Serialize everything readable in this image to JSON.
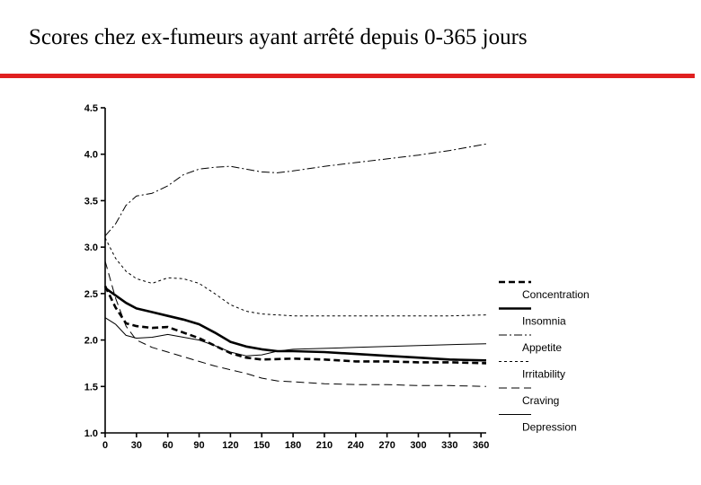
{
  "slide": {
    "title": "Scores chez ex-fumeurs ayant arrêté depuis 0-365 jours",
    "accent_color": "#e02020"
  },
  "chart_data": {
    "type": "line",
    "title": "",
    "xlabel": "",
    "ylabel": "",
    "xlim": [
      0,
      365
    ],
    "ylim": [
      1.0,
      4.5
    ],
    "xticks": [
      0,
      30,
      60,
      90,
      120,
      150,
      180,
      210,
      240,
      270,
      300,
      330,
      360
    ],
    "yticks": [
      1.0,
      1.5,
      2.0,
      2.5,
      3.0,
      3.5,
      4.0,
      4.5
    ],
    "ytick_labels": [
      "1.0",
      "1.5",
      "2.0",
      "2.5",
      "3.0",
      "3.5",
      "4.0",
      "4.5"
    ],
    "grid": false,
    "legend_position": "right",
    "series": [
      {
        "name": "Concentration",
        "style": "bold-dashed",
        "x": [
          0,
          10,
          20,
          30,
          45,
          60,
          75,
          90,
          105,
          120,
          135,
          150,
          180,
          210,
          240,
          270,
          300,
          330,
          365
        ],
        "y": [
          2.58,
          2.35,
          2.18,
          2.15,
          2.13,
          2.14,
          2.08,
          2.02,
          1.94,
          1.86,
          1.81,
          1.79,
          1.8,
          1.79,
          1.77,
          1.77,
          1.76,
          1.76,
          1.75
        ]
      },
      {
        "name": "Insomnia",
        "style": "bold-solid",
        "x": [
          0,
          10,
          20,
          30,
          45,
          60,
          75,
          90,
          105,
          120,
          135,
          150,
          165,
          180,
          210,
          240,
          270,
          300,
          330,
          365
        ],
        "y": [
          2.56,
          2.48,
          2.4,
          2.34,
          2.3,
          2.26,
          2.22,
          2.17,
          2.08,
          1.98,
          1.93,
          1.9,
          1.88,
          1.88,
          1.87,
          1.85,
          1.83,
          1.81,
          1.79,
          1.78
        ]
      },
      {
        "name": "Appetite",
        "style": "dash-dot",
        "x": [
          0,
          10,
          20,
          30,
          45,
          60,
          75,
          90,
          105,
          120,
          135,
          150,
          165,
          180,
          210,
          240,
          270,
          300,
          330,
          365
        ],
        "y": [
          3.12,
          3.25,
          3.45,
          3.55,
          3.58,
          3.66,
          3.78,
          3.84,
          3.86,
          3.87,
          3.84,
          3.81,
          3.8,
          3.82,
          3.87,
          3.91,
          3.95,
          3.99,
          4.04,
          4.11
        ]
      },
      {
        "name": "Irritability",
        "style": "short-dashed",
        "x": [
          0,
          10,
          20,
          30,
          45,
          60,
          75,
          90,
          105,
          120,
          135,
          150,
          165,
          180,
          210,
          240,
          270,
          300,
          330,
          365
        ],
        "y": [
          3.1,
          2.88,
          2.74,
          2.66,
          2.61,
          2.67,
          2.66,
          2.61,
          2.5,
          2.38,
          2.31,
          2.28,
          2.27,
          2.26,
          2.26,
          2.26,
          2.26,
          2.26,
          2.26,
          2.27
        ]
      },
      {
        "name": "Craving",
        "style": "long-dashed",
        "x": [
          0,
          10,
          20,
          30,
          45,
          60,
          75,
          90,
          105,
          120,
          135,
          150,
          165,
          180,
          210,
          240,
          270,
          300,
          330,
          365
        ],
        "y": [
          2.85,
          2.45,
          2.15,
          2.0,
          1.92,
          1.87,
          1.82,
          1.77,
          1.72,
          1.68,
          1.64,
          1.59,
          1.56,
          1.55,
          1.53,
          1.52,
          1.52,
          1.51,
          1.51,
          1.5
        ]
      },
      {
        "name": "Depression",
        "style": "thin-solid",
        "x": [
          0,
          10,
          20,
          30,
          45,
          60,
          75,
          90,
          105,
          120,
          135,
          150,
          165,
          180,
          210,
          240,
          270,
          300,
          330,
          365
        ],
        "y": [
          2.24,
          2.17,
          2.05,
          2.02,
          2.03,
          2.06,
          2.03,
          2.0,
          1.94,
          1.87,
          1.83,
          1.84,
          1.88,
          1.9,
          1.91,
          1.92,
          1.93,
          1.94,
          1.95,
          1.96
        ]
      }
    ]
  }
}
